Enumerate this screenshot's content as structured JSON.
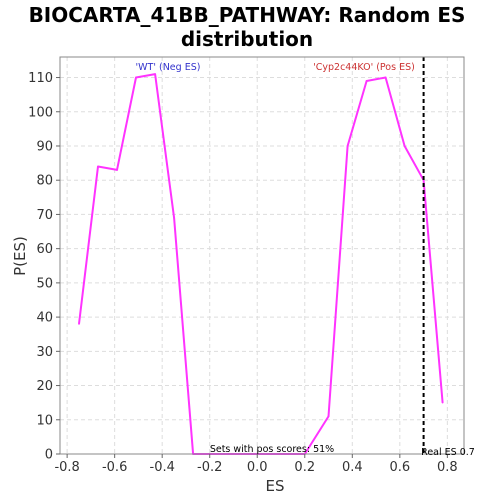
{
  "chart_data": {
    "type": "line",
    "title_line1": "BIOCARTA_41BB_PATHWAY: Random ES",
    "title_line2": "distribution",
    "xlabel": "ES",
    "ylabel": "P(ES)",
    "xlim": [
      -0.83,
      0.87
    ],
    "ylim": [
      0,
      116
    ],
    "x_ticks": [
      "-0.8",
      "-0.6",
      "-0.4",
      "-0.2",
      "0.0",
      "0.2",
      "0.4",
      "0.6",
      "0.8"
    ],
    "x_tick_values": [
      -0.8,
      -0.6,
      -0.4,
      -0.2,
      0.0,
      0.2,
      0.4,
      0.6,
      0.8
    ],
    "y_ticks": [
      "0",
      "10",
      "20",
      "30",
      "40",
      "50",
      "60",
      "70",
      "80",
      "90",
      "100",
      "110"
    ],
    "y_tick_values": [
      0,
      10,
      20,
      30,
      40,
      50,
      60,
      70,
      80,
      90,
      100,
      110
    ],
    "grid": true,
    "series": [
      {
        "color": "#ff33ff",
        "x": [
          -0.75,
          -0.67,
          -0.59,
          -0.51,
          -0.43,
          -0.35,
          -0.27,
          -0.2,
          -0.12,
          -0.04,
          0.04,
          0.12,
          0.2,
          0.3,
          0.38,
          0.46,
          0.54,
          0.62,
          0.7,
          0.78
        ],
        "y": [
          38,
          84,
          83,
          110,
          111,
          69,
          0,
          0,
          0,
          0,
          0,
          0,
          0,
          11,
          90,
          109,
          110,
          90,
          80,
          15
        ]
      }
    ],
    "real_es": 0.7,
    "real_es_line_color": "#000000",
    "annotations": {
      "neg_label": "'WT' (Neg ES)",
      "neg_color": "#3333cc",
      "pos_label": "'Cyp2c44KO' (Pos ES)",
      "pos_color": "#cc3333",
      "sets_label": "Sets with pos scores: 51%",
      "real_es_label": "Real ES 0.7"
    }
  }
}
